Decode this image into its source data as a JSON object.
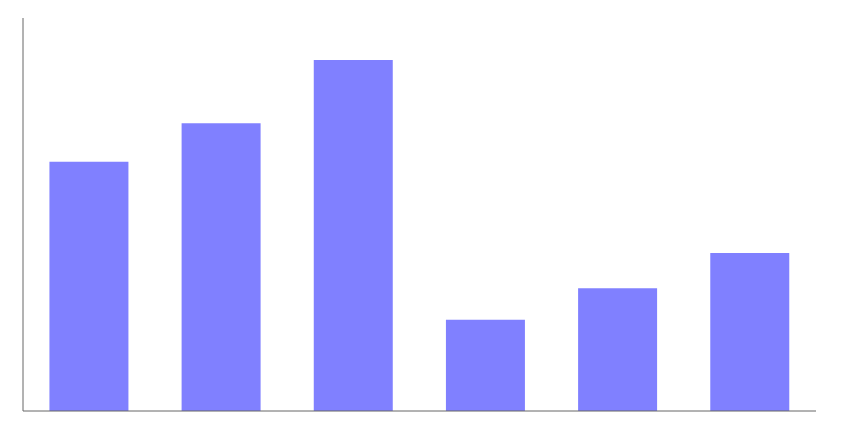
{
  "chart_data": {
    "type": "bar",
    "categories": [
      null,
      null,
      null,
      null,
      null,
      null
    ],
    "values": [
      0.71,
      0.82,
      1.0,
      0.26,
      0.35,
      0.45
    ],
    "color": "#8080ff",
    "ylim": [
      0,
      1.12
    ],
    "grid": false,
    "tick_labels": false
  }
}
